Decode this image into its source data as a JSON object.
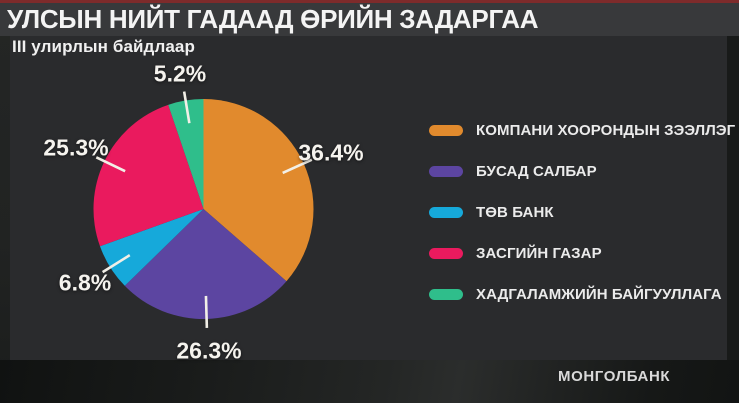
{
  "header": {
    "title": "УЛСЫН НИЙТ ГАДААД ӨРИЙН ЗАДАРГАА",
    "subtitle": "III улирлын байдлаар"
  },
  "footer": {
    "source": "МОНГОЛБАНК"
  },
  "colors": {
    "accent_top_line": "#7e2b2b",
    "title_bar_bg": "#38393b",
    "panel_bg": "#2a2b2d",
    "tick_line": "#f2efe7"
  },
  "chart_data": {
    "type": "pie",
    "title": "УЛСЫН НИЙТ ГАДААД ӨРИЙН ЗАДАРГАА",
    "subtitle": "III улирлын байдлаар",
    "unit": "%",
    "start_angle_deg": 0,
    "direction": "clockwise",
    "legend_position": "right",
    "slices": [
      {
        "key": "intercompany-lending",
        "label": "КОМПАНИ ХООРОНДЫН ЗЭЭЛЛЭГ",
        "value": 36.4,
        "pct_label": "36.4%",
        "color": "#e18a2d"
      },
      {
        "key": "other-sectors",
        "label": "БУСАД САЛБАР",
        "value": 26.3,
        "pct_label": "26.3%",
        "color": "#5c45a1"
      },
      {
        "key": "central-bank",
        "label": "ТӨВ БАНК",
        "value": 6.8,
        "pct_label": "6.8%",
        "color": "#16a9da"
      },
      {
        "key": "government",
        "label": "ЗАСГИЙН ГАЗАР",
        "value": 25.3,
        "pct_label": "25.3%",
        "color": "#ea1a5e"
      },
      {
        "key": "deposit-institutions",
        "label": "ХАДГАЛАМЖИЙН БАЙГУУЛЛАГА",
        "value": 5.2,
        "pct_label": "5.2%",
        "color": "#2fbe8b"
      }
    ]
  }
}
